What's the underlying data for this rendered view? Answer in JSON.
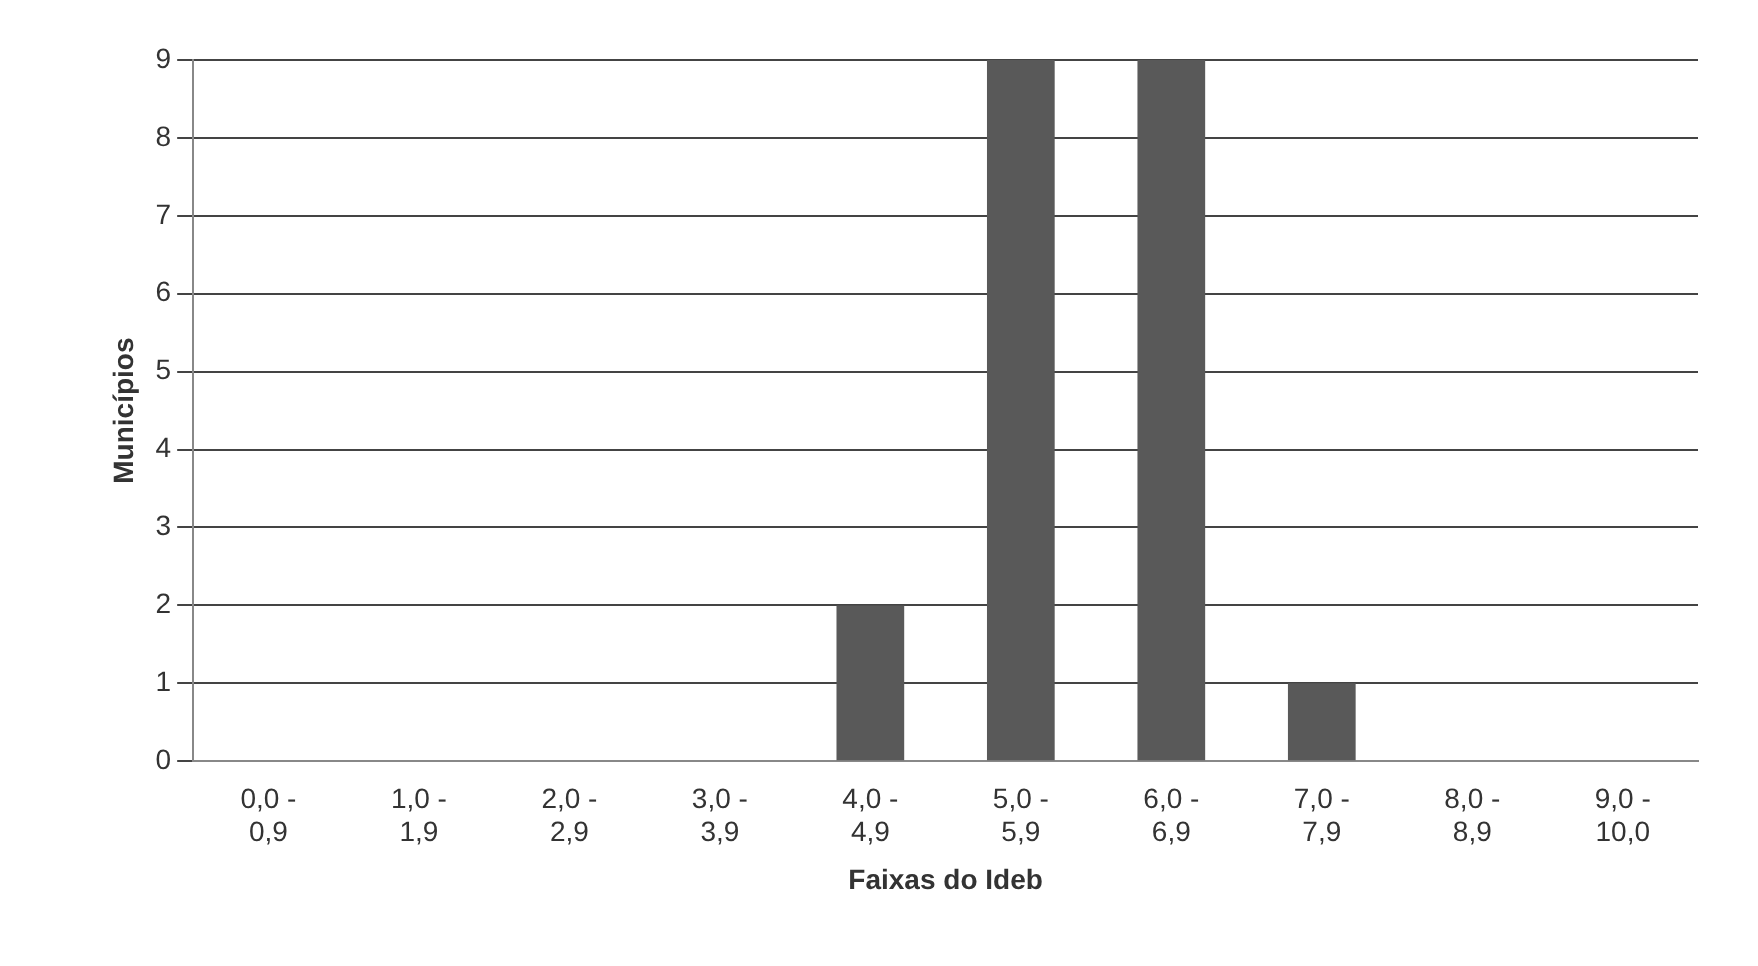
{
  "chart_data": {
    "type": "bar",
    "xlabel": "Faixas do Ideb",
    "ylabel": "Municípios",
    "categories": [
      "0,0 - 0,9",
      "1,0 - 1,9",
      "2,0 - 2,9",
      "3,0 - 3,9",
      "4,0 - 4,9",
      "5,0 - 5,9",
      "6,0 - 6,9",
      "7,0 - 7,9",
      "8,0 - 8,9",
      "9,0 - 10,0"
    ],
    "values": [
      0,
      0,
      0,
      0,
      2,
      9,
      9,
      1,
      0,
      0
    ],
    "color": "#595959",
    "ylim": [
      0,
      9
    ],
    "yticks": [
      0,
      1,
      2,
      3,
      4,
      5,
      6,
      7,
      8,
      9
    ],
    "grid": "y",
    "legend": false
  }
}
